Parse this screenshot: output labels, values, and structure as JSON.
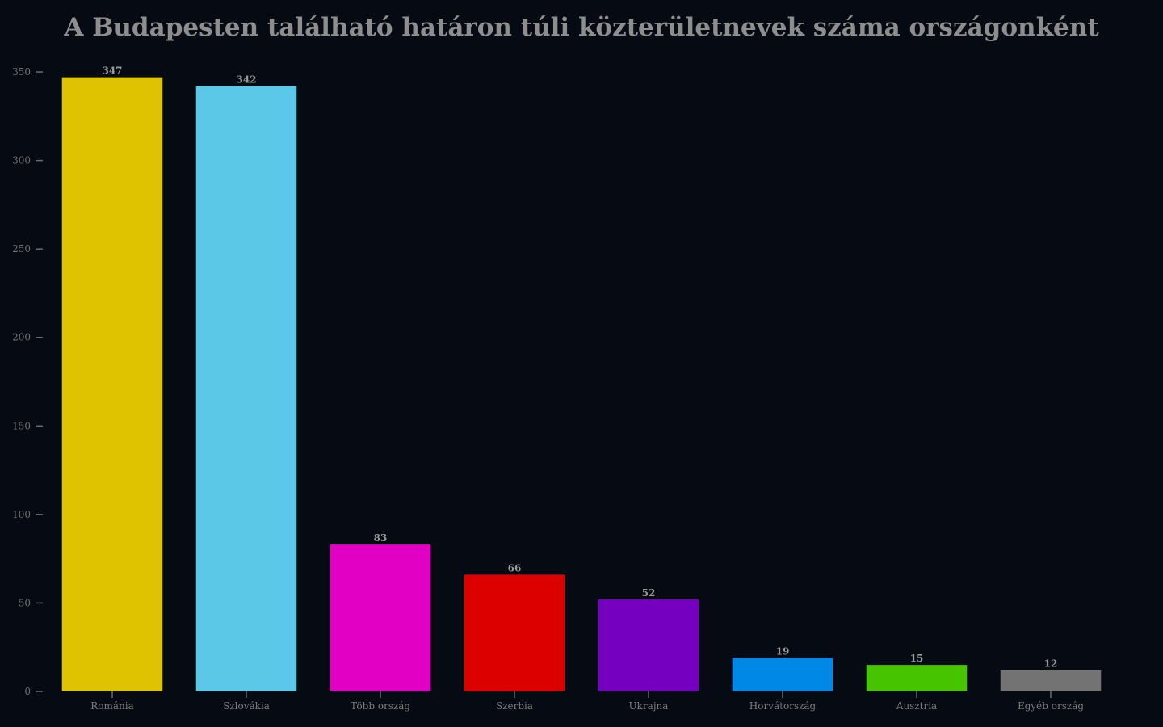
{
  "chart_data": {
    "type": "bar",
    "title": "A Budapesten található határon túli közterületnevek száma országonként",
    "xlabel": "",
    "ylabel": "",
    "ylim": [
      0,
      350
    ],
    "yticks": [
      0,
      50,
      100,
      150,
      200,
      250,
      300,
      350
    ],
    "grid": false,
    "legend": "none",
    "categories": [
      "Románia",
      "Szlovákia",
      "Több ország",
      "Szerbia",
      "Ukrajna",
      "Horvátország",
      "Ausztria",
      "Egyéb ország"
    ],
    "values": [
      347,
      342,
      83,
      66,
      52,
      19,
      15,
      12
    ],
    "colors": [
      "#e0c300",
      "#5bc8e8",
      "#e100c3",
      "#dc0000",
      "#7500c0",
      "#0088e6",
      "#47c400",
      "#737373"
    ]
  }
}
